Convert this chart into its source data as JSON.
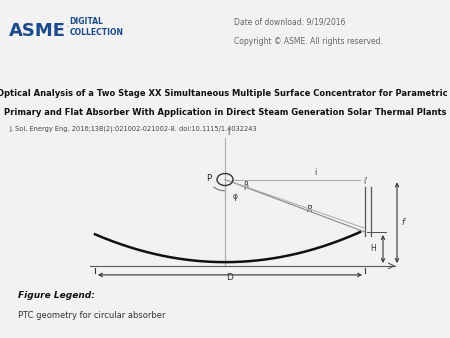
{
  "date_text": "Date of download: 9/19/2016",
  "copyright_text": "Copyright © ASME. All rights reserved.",
  "from_line1": "From: Optical Analysis of a Two Stage XX Simultaneous Multiple Surface Concentrator for Parametric Trough",
  "from_line2": "Primary and Flat Absorber With Application in Direct Steam Generation Solar Thermal Plants",
  "journal_text": "J. Sol. Energy Eng. 2016;138(2):021002-021002-8. doi:10.1115/1.4032243",
  "legend_title": "Figure Legend:",
  "legend_text": "PTC geometry for circular absorber",
  "asme_text": "ASME",
  "digital_text": "DIGITAL\nCOLLECTION",
  "bg_color": "#f2f2f2",
  "white": "#ffffff",
  "dark": "#222222",
  "gray": "#888888",
  "light_gray": "#cccccc",
  "header_bg": "#e6e6e6",
  "blue": "#1a4a8a"
}
